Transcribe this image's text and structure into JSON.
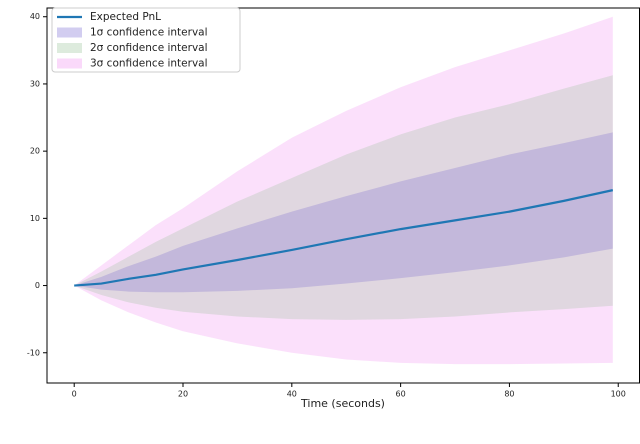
{
  "chart_data": {
    "type": "line",
    "xlabel": "Time (seconds)",
    "x": [
      0,
      5,
      10,
      15,
      20,
      30,
      40,
      50,
      60,
      70,
      80,
      90,
      99
    ],
    "series": [
      {
        "name": "Expected PnL",
        "color": "#1f77b4",
        "values": [
          0,
          0.3,
          1.0,
          1.6,
          2.4,
          3.8,
          5.3,
          6.9,
          8.4,
          9.7,
          11,
          12.6,
          14.2
        ]
      }
    ],
    "bands": [
      {
        "name": "1σ confidence interval",
        "color": "slateblue",
        "lower": [
          0,
          -0.6,
          -0.9,
          -1.0,
          -1.0,
          -0.8,
          -0.4,
          0.3,
          1.1,
          2,
          3,
          4.2,
          5.5
        ],
        "upper": [
          0,
          1.3,
          2.9,
          4.3,
          5.9,
          8.5,
          11,
          13.3,
          15.5,
          17.5,
          19.5,
          21.2,
          22.8
        ]
      },
      {
        "name": "2σ confidence interval",
        "color": "darkseagreen",
        "lower": [
          0,
          -1.4,
          -2.5,
          -3.3,
          -3.9,
          -4.6,
          -5,
          -5.1,
          -5,
          -4.6,
          -4,
          -3.5,
          -3
        ],
        "upper": [
          0,
          2.1,
          4.3,
          6.5,
          8.5,
          12.5,
          16,
          19.5,
          22.5,
          25,
          27,
          29.3,
          31.3
        ]
      },
      {
        "name": "3σ confidence interval",
        "color": "violet",
        "lower": [
          0,
          -2.2,
          -4,
          -5.5,
          -6.8,
          -8.6,
          -10,
          -11,
          -11.5,
          -11.7,
          -11.7,
          -11.6,
          -11.5
        ],
        "upper": [
          0,
          3,
          6,
          9,
          11.5,
          17,
          22,
          26,
          29.5,
          32.5,
          35,
          37.5,
          40
        ]
      }
    ],
    "xlim": [
      -5,
      104
    ],
    "ylim": [
      -14.5,
      41.3
    ],
    "xticks": [
      0,
      20,
      40,
      60,
      80,
      100
    ],
    "yticks": [
      -10,
      0,
      10,
      20,
      30,
      40
    ],
    "legend": "upper left"
  }
}
